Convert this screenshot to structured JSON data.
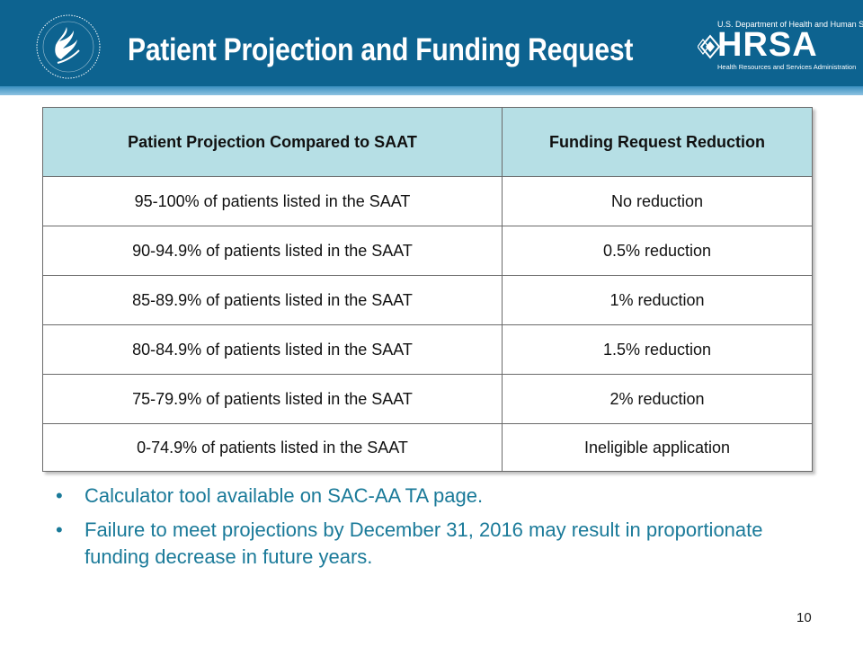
{
  "slide": {
    "title": "Patient Projection and Funding Request",
    "page_number": "10"
  },
  "logos": {
    "hhs_seal": "hhs-eagle-seal-icon",
    "hrsa": {
      "top_text": "U.S. Department of Health and Human Services",
      "wordmark": "HRSA",
      "sub_text": "Health Resources and Services Administration"
    }
  },
  "table": {
    "headers": [
      "Patient Projection Compared to SAAT",
      "Funding Request Reduction"
    ],
    "rows": [
      [
        "95-100% of patients listed in the SAAT",
        "No reduction"
      ],
      [
        "90-94.9% of patients listed in the SAAT",
        "0.5% reduction"
      ],
      [
        "85-89.9% of patients listed in the SAAT",
        "1% reduction"
      ],
      [
        "80-84.9% of patients listed in the SAAT",
        "1.5% reduction"
      ],
      [
        "75-79.9% of patients listed in the SAAT",
        "2% reduction"
      ],
      [
        "0-74.9% of patients listed in the SAAT",
        "Ineligible application"
      ]
    ]
  },
  "bullets": [
    "Calculator tool available on SAC-AA TA page.",
    "Failure to meet projections by December 31, 2016 may result in proportionate funding decrease in future years."
  ],
  "colors": {
    "header_bg": "#0d6390",
    "table_header_bg": "#b6dfe5",
    "bullet_text": "#1a7a99"
  }
}
